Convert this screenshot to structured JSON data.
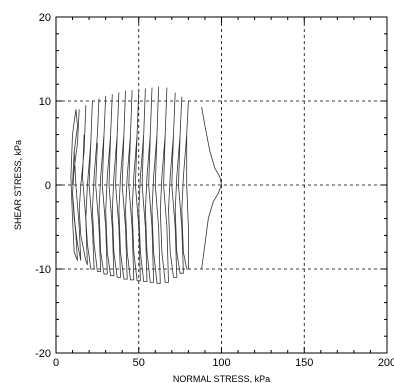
{
  "chart_data": {
    "type": "line",
    "title": "",
    "xlabel": "NORMAL STRESS, kPa",
    "ylabel": "SHEAR STRESS, kPa",
    "xlim": [
      0,
      200
    ],
    "ylim": [
      -20,
      20
    ],
    "x_ticks": [
      0,
      50,
      100,
      150,
      200
    ],
    "x_tick_labels": [
      "0",
      "50",
      "100",
      "150",
      "200"
    ],
    "y_ticks": [
      -20,
      -10,
      0,
      10,
      20
    ],
    "y_tick_labels": [
      "-20",
      "-10",
      "0",
      "10",
      "20"
    ],
    "grid": true,
    "grid_style": "dashed",
    "line_color": "#333333",
    "series": [
      {
        "x": [
          10,
          11,
          13,
          12,
          10,
          9,
          10,
          11,
          13,
          12,
          10
        ],
        "y": [
          0,
          4,
          7,
          9,
          6,
          1,
          -4,
          -8,
          -9,
          -6,
          -1
        ]
      },
      {
        "x": [
          14,
          13,
          11,
          10,
          11,
          13,
          15,
          14,
          12,
          11
        ],
        "y": [
          9,
          5,
          2,
          -1,
          -4,
          -7,
          -9,
          -5,
          0,
          4
        ]
      },
      {
        "x": [
          18,
          17,
          15,
          14,
          15,
          18,
          19,
          18,
          16,
          17
        ],
        "y": [
          9.5,
          4,
          0,
          -3,
          -6,
          -9,
          -9.5,
          -4,
          1,
          6
        ]
      },
      {
        "x": [
          22,
          21,
          19,
          18,
          19,
          21,
          23,
          22,
          20,
          21
        ],
        "y": [
          10,
          5,
          0,
          -4,
          -7,
          -10,
          -10,
          -5,
          0,
          5
        ]
      },
      {
        "x": [
          26,
          25,
          23,
          22,
          23,
          25,
          27,
          26,
          24,
          25
        ],
        "y": [
          10.3,
          6,
          1,
          -3,
          -7,
          -10.3,
          -10.3,
          -5,
          0,
          5
        ]
      },
      {
        "x": [
          30,
          29,
          27,
          26,
          27,
          29,
          31,
          30,
          28,
          29
        ],
        "y": [
          10.6,
          6,
          1,
          -3,
          -8,
          -10.6,
          -10.6,
          -5,
          0,
          6
        ]
      },
      {
        "x": [
          34,
          33,
          31,
          30,
          31,
          33,
          35,
          34,
          32,
          33
        ],
        "y": [
          10.8,
          6,
          1,
          -3,
          -8,
          -10.8,
          -10.8,
          -5,
          0,
          6
        ]
      },
      {
        "x": [
          38,
          37,
          35,
          34,
          35,
          37,
          39,
          38,
          36,
          37
        ],
        "y": [
          11,
          6,
          1,
          -3,
          -8,
          -11,
          -11,
          -5,
          0,
          6
        ]
      },
      {
        "x": [
          42,
          41,
          39,
          38,
          39,
          41,
          43,
          42,
          40,
          41
        ],
        "y": [
          11.2,
          6,
          1,
          -3,
          -8,
          -11.2,
          -11.2,
          -5,
          0,
          6
        ]
      },
      {
        "x": [
          46,
          45,
          43,
          42,
          43,
          45,
          47,
          46,
          44,
          45
        ],
        "y": [
          11.3,
          6,
          1,
          -3,
          -8,
          -11.3,
          -11.3,
          -5,
          0,
          6
        ]
      },
      {
        "x": [
          50,
          49,
          47,
          46,
          47,
          49,
          51,
          50,
          48,
          49
        ],
        "y": [
          11.4,
          6,
          1,
          -3,
          -8,
          -11.4,
          -11.4,
          -5,
          0,
          6
        ]
      },
      {
        "x": [
          54,
          53,
          51,
          50,
          51,
          53,
          55,
          54,
          52,
          53
        ],
        "y": [
          11.5,
          6,
          1,
          -3,
          -8,
          -11.5,
          -11.5,
          -5,
          0,
          6
        ]
      },
      {
        "x": [
          58,
          57,
          55,
          54,
          55,
          57,
          59,
          58,
          56,
          57
        ],
        "y": [
          11.6,
          6,
          1,
          -3,
          -8,
          -11.6,
          -11.6,
          -5,
          0,
          6
        ]
      },
      {
        "x": [
          62,
          61,
          59,
          58,
          59,
          61,
          63,
          62,
          60,
          61
        ],
        "y": [
          11.7,
          6,
          1,
          -3,
          -8,
          -11.7,
          -11.7,
          -5,
          0,
          6
        ]
      },
      {
        "x": [
          67,
          66,
          64,
          63,
          64,
          66,
          68,
          67,
          65,
          66
        ],
        "y": [
          11.6,
          6,
          1,
          -3,
          -8,
          -11.6,
          -11.6,
          -5,
          0,
          6
        ]
      },
      {
        "x": [
          72,
          71,
          69,
          68,
          69,
          71,
          73,
          72,
          70,
          71
        ],
        "y": [
          11,
          6,
          1,
          -3,
          -8,
          -11,
          -11,
          -5,
          0,
          6
        ]
      },
      {
        "x": [
          76,
          75,
          73,
          72,
          73,
          75,
          77,
          76,
          74,
          75
        ],
        "y": [
          10.5,
          6,
          1,
          -3,
          -8,
          -10.5,
          -10.5,
          -5,
          0,
          6
        ]
      },
      {
        "x": [
          80,
          79,
          77,
          76,
          77,
          79,
          80,
          80,
          79,
          79
        ],
        "y": [
          10,
          6,
          1,
          -3,
          -8,
          -10,
          -10,
          -5,
          0,
          6
        ]
      },
      {
        "x": [
          88,
          90,
          93,
          96,
          99,
          100,
          98,
          95,
          92,
          90,
          88
        ],
        "y": [
          9.3,
          7,
          4,
          2,
          1,
          0,
          -1,
          -2,
          -4,
          -7,
          -10
        ]
      }
    ]
  }
}
